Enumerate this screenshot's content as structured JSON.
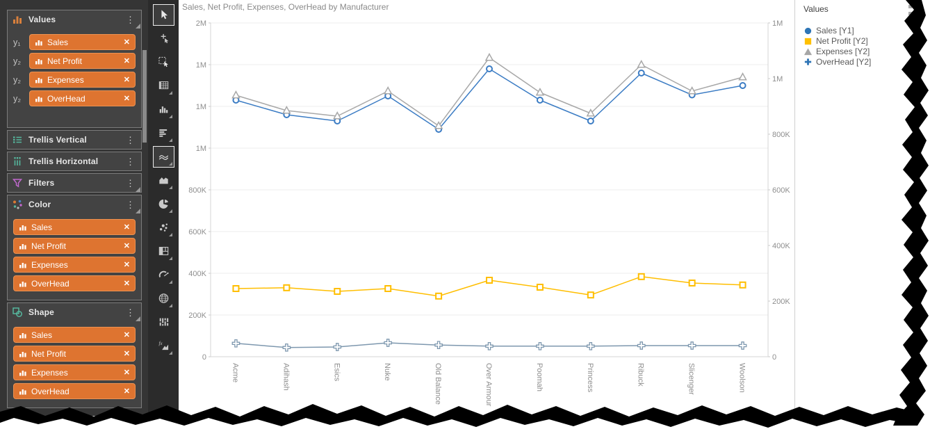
{
  "ui": {
    "kebab_glyph": "⋮",
    "close_glyph": "✕"
  },
  "sidebar": {
    "panels": [
      {
        "title": "Values",
        "icon": "values",
        "corner": true,
        "items": [
          {
            "axis": "y₁",
            "label": "Sales"
          },
          {
            "axis": "y₂",
            "label": "Net Profit"
          },
          {
            "axis": "y₂",
            "label": "Expenses"
          },
          {
            "axis": "y₂",
            "label": "OverHead"
          }
        ]
      },
      {
        "title": "Trellis Vertical",
        "icon": "trellis-vertical",
        "corner": false
      },
      {
        "title": "Trellis Horizontal",
        "icon": "trellis-horizontal",
        "corner": false
      },
      {
        "title": "Filters",
        "icon": "funnel",
        "corner": true
      },
      {
        "title": "Color",
        "icon": "color-dots",
        "corner": true,
        "items": [
          {
            "label": "Sales"
          },
          {
            "label": "Net Profit"
          },
          {
            "label": "Expenses"
          },
          {
            "label": "OverHead"
          }
        ]
      },
      {
        "title": "Shape",
        "icon": "shape",
        "corner": true,
        "items": [
          {
            "label": "Sales"
          },
          {
            "label": "Net Profit"
          },
          {
            "label": "Expenses"
          },
          {
            "label": "OverHead"
          }
        ]
      }
    ]
  },
  "toolbar": {
    "tools": [
      {
        "icon": "pointer-select",
        "selected": true,
        "submenu": false
      },
      {
        "icon": "move-tool",
        "selected": false,
        "submenu": false
      },
      {
        "icon": "marquee-select",
        "selected": false,
        "submenu": false
      },
      {
        "icon": "table-chart",
        "selected": false,
        "submenu": true
      },
      {
        "icon": "column-chart",
        "selected": false,
        "submenu": true
      },
      {
        "icon": "bar-chart",
        "selected": false,
        "submenu": true
      },
      {
        "icon": "line-chart",
        "selected": true,
        "submenu": true
      },
      {
        "icon": "area-chart",
        "selected": false,
        "submenu": true
      },
      {
        "icon": "pie-chart",
        "selected": false,
        "submenu": true
      },
      {
        "icon": "scatter-chart",
        "selected": false,
        "submenu": true
      },
      {
        "icon": "treemap-chart",
        "selected": false,
        "submenu": true
      },
      {
        "icon": "gauge-chart",
        "selected": false,
        "submenu": true
      },
      {
        "icon": "map-chart",
        "selected": false,
        "submenu": true
      },
      {
        "icon": "parallel-chart",
        "selected": false,
        "submenu": false
      },
      {
        "icon": "kpi-chart",
        "selected": false,
        "submenu": true
      }
    ]
  },
  "chart_data": {
    "type": "line",
    "title": "Sales, Net Profit, Expenses, OverHead by Manufacturer",
    "categories": [
      "Acme",
      "Adihash",
      "Esics",
      "Nuke",
      "Old Balance",
      "Over Armour",
      "Poomah",
      "Princess",
      "Ribuck",
      "Slicenger",
      "Woolson"
    ],
    "series": [
      {
        "name": "Sales [Y1]",
        "axis": "Y1",
        "marker": "circle",
        "color": "#3B7CC4",
        "values": [
          1230000,
          1160000,
          1130000,
          1250000,
          1090000,
          1380000,
          1230000,
          1130000,
          1360000,
          1255000,
          1300000
        ]
      },
      {
        "name": "Expenses [Y2]",
        "axis": "Y2",
        "marker": "triangle",
        "color": "#A8A8A8",
        "values": [
          940000,
          885000,
          865000,
          955000,
          830000,
          1075000,
          950000,
          875000,
          1050000,
          955000,
          1005000
        ]
      },
      {
        "name": "Net Profit [Y2]",
        "axis": "Y2",
        "marker": "square",
        "color": "#FFBE00",
        "values": [
          245000,
          248000,
          235000,
          245000,
          218000,
          275000,
          250000,
          222000,
          288000,
          265000,
          258000
        ]
      },
      {
        "name": "OverHead [Y2]",
        "axis": "Y2",
        "marker": "plus",
        "color": "#7D97AE",
        "values": [
          48000,
          33000,
          35000,
          50000,
          42000,
          38000,
          38000,
          38000,
          40000,
          40000,
          40000
        ]
      }
    ],
    "y1_axis": {
      "min": 0,
      "max": 1600000,
      "tick_step": 200000,
      "labels_top_to_bottom": [
        "2M",
        "1M",
        "1M",
        "1M",
        "800K",
        "600K",
        "400K",
        "200K",
        "0"
      ]
    },
    "y2_axis": {
      "min": 0,
      "max": 1200000,
      "tick_step": 200000,
      "labels_top_to_bottom": [
        "1M",
        "1M",
        "800K",
        "600K",
        "400K",
        "200K",
        "0"
      ]
    },
    "grid": "horizontal",
    "legend_position": "right"
  },
  "legend": {
    "title": "Values",
    "items": [
      {
        "label": "Sales [Y1]",
        "marker": "circle",
        "color": "#2E75B6"
      },
      {
        "label": "Net Profit [Y2]",
        "marker": "square",
        "color": "#FFC000"
      },
      {
        "label": "Expenses [Y2]",
        "marker": "triangle",
        "color": "#A6A6A6"
      },
      {
        "label": "OverHead [Y2]",
        "marker": "plus",
        "color": "#2E74B5"
      }
    ]
  }
}
